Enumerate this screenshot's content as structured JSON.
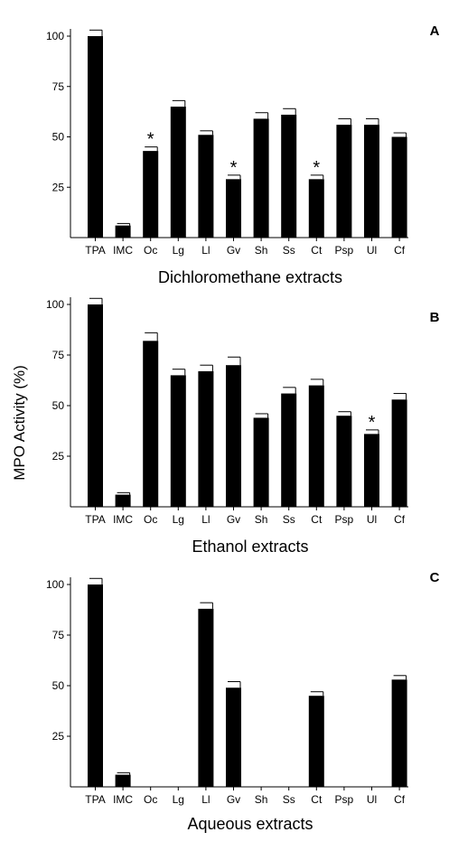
{
  "figure": {
    "ylabel": "MPO Activity (%)"
  },
  "chart_data": [
    {
      "type": "bar",
      "panel_label": "A",
      "xlabel": "Dichloromethane extracts",
      "ylabel": "MPO Activity (%)",
      "categories": [
        "TPA",
        "IMC",
        "Oc",
        "Lg",
        "Ll",
        "Gv",
        "Sh",
        "Ss",
        "Ct",
        "Psp",
        "Ul",
        "Cf"
      ],
      "values": [
        100,
        6,
        43,
        65,
        51,
        29,
        59,
        61,
        29,
        56,
        56,
        50
      ],
      "errors": [
        3,
        1,
        2,
        3,
        2,
        2,
        3,
        3,
        2,
        3,
        3,
        2
      ],
      "significant": [
        false,
        false,
        true,
        false,
        false,
        true,
        false,
        false,
        true,
        false,
        false,
        false
      ],
      "significance_marker": "*",
      "yticks": [
        25,
        50,
        75,
        100
      ],
      "ylim": [
        0,
        105
      ],
      "grid": false
    },
    {
      "type": "bar",
      "panel_label": "B",
      "xlabel": "Ethanol extracts",
      "ylabel": "MPO Activity (%)",
      "categories": [
        "TPA",
        "IMC",
        "Oc",
        "Lg",
        "Ll",
        "Gv",
        "Sh",
        "Ss",
        "Ct",
        "Psp",
        "Ul",
        "Cf"
      ],
      "values": [
        100,
        6,
        82,
        65,
        67,
        70,
        44,
        56,
        60,
        45,
        36,
        53
      ],
      "errors": [
        3,
        1,
        4,
        3,
        3,
        4,
        2,
        3,
        3,
        2,
        2,
        3
      ],
      "significant": [
        false,
        false,
        false,
        false,
        false,
        false,
        false,
        false,
        false,
        false,
        true,
        false
      ],
      "significance_marker": "*",
      "yticks": [
        25,
        50,
        75,
        100
      ],
      "ylim": [
        0,
        105
      ],
      "grid": false
    },
    {
      "type": "bar",
      "panel_label": "C",
      "xlabel": "Aqueous extracts",
      "ylabel": "MPO Activity (%)",
      "categories": [
        "TPA",
        "IMC",
        "Oc",
        "Lg",
        "Ll",
        "Gv",
        "Sh",
        "Ss",
        "Ct",
        "Psp",
        "Ul",
        "Cf"
      ],
      "values": [
        100,
        6,
        null,
        null,
        88,
        49,
        null,
        null,
        45,
        null,
        null,
        53
      ],
      "errors": [
        3,
        1,
        null,
        null,
        3,
        3,
        null,
        null,
        2,
        null,
        null,
        2
      ],
      "significant": [
        false,
        false,
        false,
        false,
        false,
        false,
        false,
        false,
        false,
        false,
        false,
        false
      ],
      "significance_marker": "*",
      "yticks": [
        25,
        50,
        75,
        100
      ],
      "ylim": [
        0,
        105
      ],
      "grid": false
    }
  ]
}
